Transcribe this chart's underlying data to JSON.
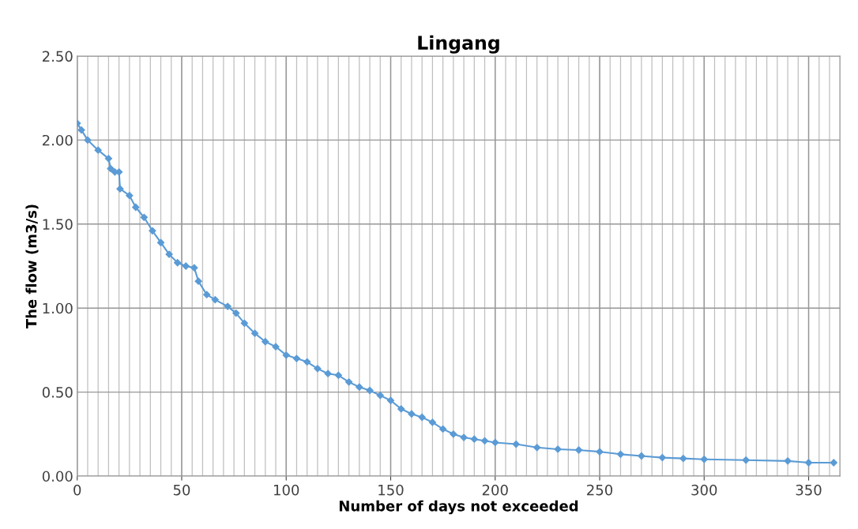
{
  "chart_data": {
    "type": "line",
    "title": "Lingang",
    "xlabel": "Number of days not exceeded",
    "ylabel": "The flow (m3/s)",
    "xlim": [
      0,
      365
    ],
    "xticks": [
      0,
      50,
      100,
      150,
      200,
      250,
      300,
      350
    ],
    "ylim": [
      0,
      2.5
    ],
    "yticks": [
      {
        "value": 0,
        "label": "0.00"
      },
      {
        "value": 0.5,
        "label": "0.50"
      },
      {
        "value": 1.0,
        "label": "1.00"
      },
      {
        "value": 1.5,
        "label": "1.50"
      },
      {
        "value": 2.0,
        "label": "2.00"
      },
      {
        "value": 2.5,
        "label": "2.50"
      }
    ],
    "grid": true,
    "marker": "diamond",
    "line_style": "solid",
    "series": [
      {
        "color": "#5b9bd5",
        "x": [
          0,
          2,
          5,
          10,
          15,
          16,
          18,
          20,
          20.5,
          25,
          28,
          32,
          36,
          40,
          44,
          48,
          52,
          56,
          58,
          62,
          66,
          72,
          76,
          80,
          85,
          90,
          95,
          100,
          105,
          110,
          115,
          120,
          125,
          130,
          135,
          140,
          145,
          150,
          155,
          160,
          165,
          170,
          175,
          180,
          185,
          190,
          195,
          200,
          210,
          220,
          230,
          240,
          250,
          260,
          270,
          280,
          290,
          300,
          320,
          340,
          350,
          362
        ],
        "values": [
          2.1,
          2.06,
          2.0,
          1.94,
          1.89,
          1.83,
          1.81,
          1.81,
          1.71,
          1.67,
          1.6,
          1.54,
          1.46,
          1.39,
          1.32,
          1.27,
          1.25,
          1.24,
          1.16,
          1.08,
          1.05,
          1.01,
          0.97,
          0.91,
          0.85,
          0.8,
          0.77,
          0.72,
          0.7,
          0.68,
          0.64,
          0.61,
          0.6,
          0.56,
          0.53,
          0.51,
          0.48,
          0.45,
          0.4,
          0.37,
          0.35,
          0.32,
          0.28,
          0.25,
          0.23,
          0.22,
          0.21,
          0.2,
          0.19,
          0.17,
          0.16,
          0.155,
          0.145,
          0.13,
          0.12,
          0.11,
          0.105,
          0.1,
          0.095,
          0.09,
          0.08,
          0.08
        ]
      }
    ]
  }
}
